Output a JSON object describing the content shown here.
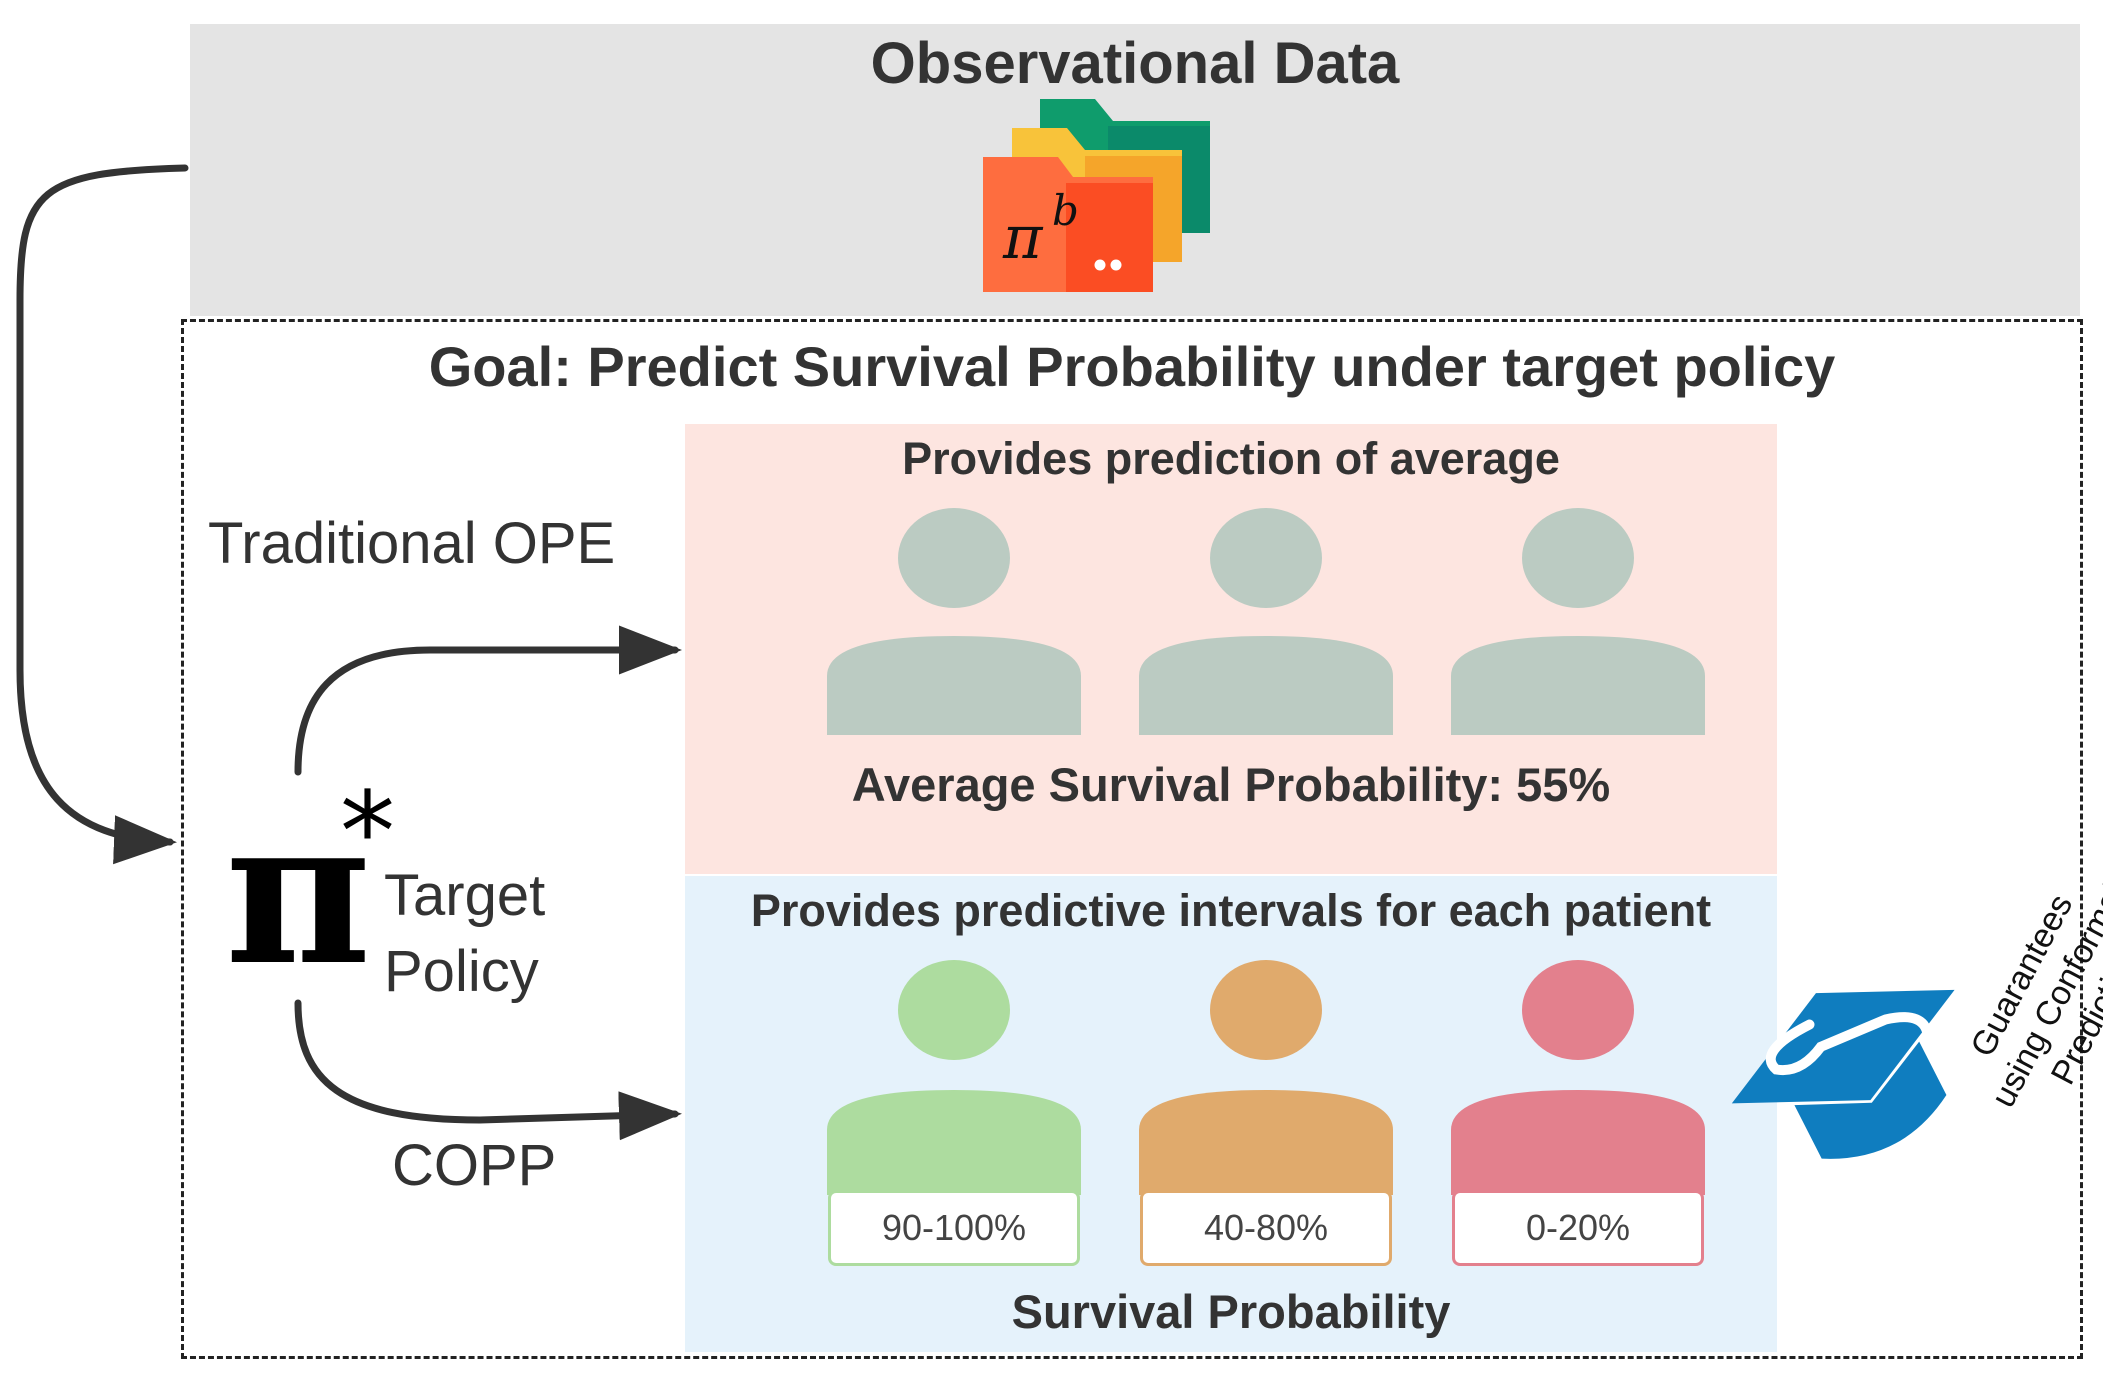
{
  "observational_data": {
    "title": "Observational Data",
    "behavior_policy_symbol": "π",
    "behavior_policy_superscript": "b"
  },
  "goal": {
    "title": "Goal: Predict Survival Probability under target policy"
  },
  "target_policy": {
    "symbol": "π",
    "superscript": "*",
    "label": "Target\nPolicy"
  },
  "traditional_ope": {
    "label": "Traditional OPE",
    "heading": "Provides prediction of average",
    "result": "Average Survival Probability: 55%",
    "patient_color": "#bbcbc2"
  },
  "copp": {
    "label": "COPP",
    "heading": "Provides predictive intervals for each patient",
    "footer": "Survival Probability",
    "patients": [
      {
        "interval": "90-100%",
        "color": "#addc9f"
      },
      {
        "interval": "40-80%",
        "color": "#e0aa6c"
      },
      {
        "interval": "0-20%",
        "color": "#e3808d"
      }
    ]
  },
  "guarantee": {
    "text": "Guarantees\nusing Conformal\nPrediction",
    "icon": "conformal-prediction-icon",
    "color": "#0f7dbf"
  },
  "colors": {
    "ope_panel": "#fde5e0",
    "copp_panel": "#e5f2fb",
    "obs_panel": "#e4e4e4"
  }
}
